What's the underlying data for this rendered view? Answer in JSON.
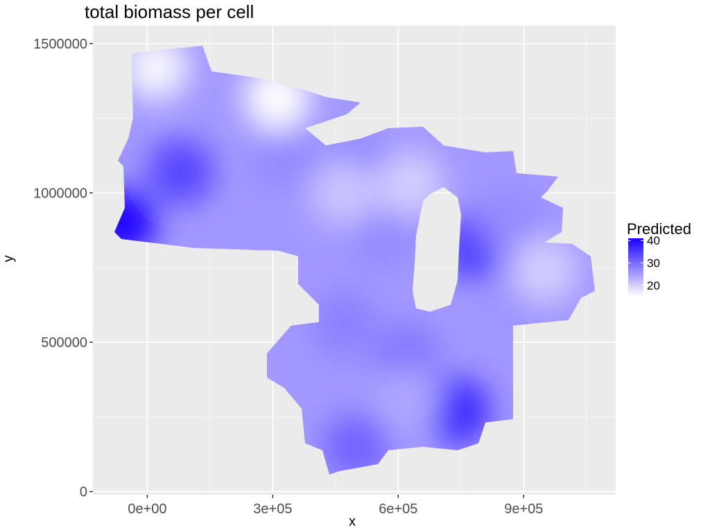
{
  "chart_data": {
    "type": "heatmap",
    "title": "total biomass per cell",
    "xlabel": "x",
    "ylabel": "y",
    "xlim": [
      -130000,
      1120000
    ],
    "ylim": [
      -10000,
      1560000
    ],
    "x_ticks": [
      0,
      300000,
      600000,
      900000
    ],
    "x_tick_labels": [
      "0e+00",
      "3e+05",
      "6e+05",
      "9e+05"
    ],
    "y_ticks": [
      0,
      500000,
      1000000,
      1500000
    ],
    "y_tick_labels": [
      "0",
      "500000",
      "1000000",
      "1500000"
    ],
    "grid": true,
    "legend": {
      "title": "Predicted",
      "position": "right",
      "range": [
        15,
        41
      ],
      "ticks": [
        20,
        30,
        40
      ],
      "colors": {
        "low": "#ffffff",
        "high": "#1a00ff"
      }
    },
    "hotspots": [
      {
        "x": -60000,
        "y": 900000,
        "value": 41
      },
      {
        "x": 780000,
        "y": 820000,
        "value": 35
      },
      {
        "x": 740000,
        "y": 270000,
        "value": 37
      },
      {
        "x": 80000,
        "y": 1070000,
        "value": 34
      },
      {
        "x": 330000,
        "y": 1120000,
        "value": 27
      },
      {
        "x": 500000,
        "y": 1080000,
        "value": 28
      },
      {
        "x": 560000,
        "y": 860000,
        "value": 27
      },
      {
        "x": 470000,
        "y": 560000,
        "value": 28
      },
      {
        "x": 620000,
        "y": 450000,
        "value": 29
      },
      {
        "x": 500000,
        "y": 150000,
        "value": 31
      },
      {
        "x": 900000,
        "y": 650000,
        "value": 26
      },
      {
        "x": 870000,
        "y": 900000,
        "value": 27
      }
    ],
    "lowspots": [
      {
        "x": 20000,
        "y": 1420000,
        "value": 16
      },
      {
        "x": 310000,
        "y": 1320000,
        "value": 15
      },
      {
        "x": 470000,
        "y": 1000000,
        "value": 21
      },
      {
        "x": 630000,
        "y": 1030000,
        "value": 20
      },
      {
        "x": 620000,
        "y": 300000,
        "value": 24
      },
      {
        "x": 950000,
        "y": 740000,
        "value": 20
      }
    ]
  }
}
